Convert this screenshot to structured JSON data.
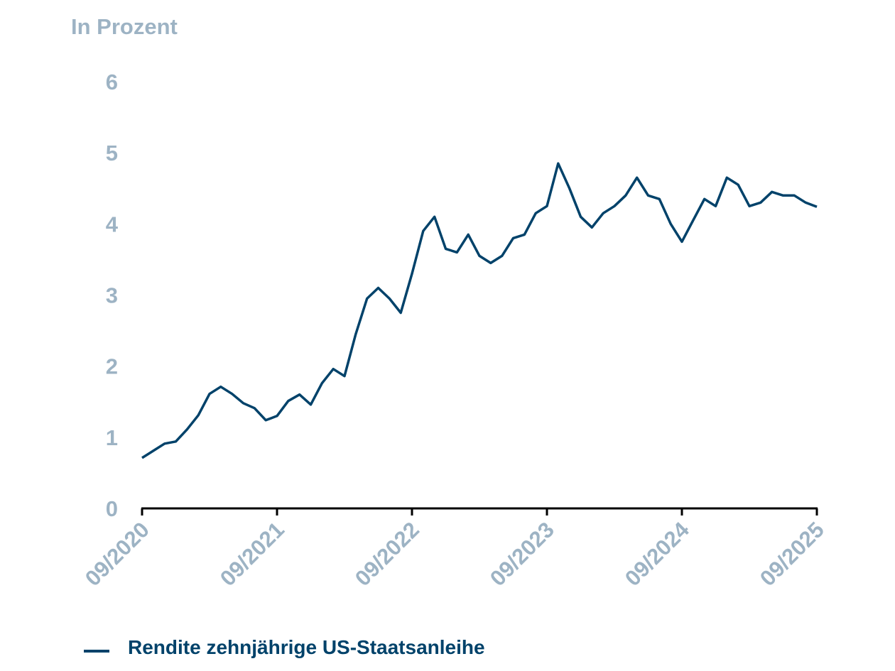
{
  "chart_data": {
    "type": "line",
    "title": "",
    "ylabel": "In Prozent",
    "xlabel": "",
    "ylim": [
      0,
      6
    ],
    "yticks": [
      "0",
      "1",
      "2",
      "3",
      "4",
      "5",
      "6"
    ],
    "xticks": [
      "09/2020",
      "09/2021",
      "09/2022",
      "09/2023",
      "09/2024",
      "09/2025"
    ],
    "grid": false,
    "legend_position": "bottom-left",
    "colors": {
      "line": "#00426a",
      "labels": "#9db3c4"
    },
    "series": [
      {
        "name": "Rendite zehnjährige US-Staatsanleihe",
        "x": [
          "2020-09",
          "2020-10",
          "2020-11",
          "2020-12",
          "2021-01",
          "2021-02",
          "2021-03",
          "2021-04",
          "2021-05",
          "2021-06",
          "2021-07",
          "2021-08",
          "2021-09",
          "2021-10",
          "2021-11",
          "2021-12",
          "2022-01",
          "2022-02",
          "2022-03",
          "2022-04",
          "2022-05",
          "2022-06",
          "2022-07",
          "2022-08",
          "2022-09",
          "2022-10",
          "2022-11",
          "2022-12",
          "2023-01",
          "2023-02",
          "2023-03",
          "2023-04",
          "2023-05",
          "2023-06",
          "2023-07",
          "2023-08",
          "2023-09",
          "2023-10",
          "2023-11",
          "2023-12",
          "2024-01",
          "2024-02",
          "2024-03",
          "2024-04",
          "2024-05",
          "2024-06",
          "2024-07",
          "2024-08",
          "2024-09",
          "2024-10",
          "2024-11",
          "2024-12",
          "2025-01",
          "2025-02",
          "2025-03",
          "2025-04",
          "2025-05",
          "2025-06",
          "2025-07",
          "2025-08",
          "2025-09"
        ],
        "values": [
          0.71,
          0.81,
          0.91,
          0.94,
          1.11,
          1.31,
          1.61,
          1.71,
          1.61,
          1.48,
          1.41,
          1.24,
          1.3,
          1.51,
          1.6,
          1.46,
          1.76,
          1.96,
          1.86,
          2.45,
          2.95,
          3.1,
          2.95,
          2.75,
          3.3,
          3.9,
          4.1,
          3.65,
          3.6,
          3.85,
          3.55,
          3.45,
          3.55,
          3.8,
          3.85,
          4.15,
          4.25,
          4.85,
          4.5,
          4.1,
          3.95,
          4.15,
          4.25,
          4.4,
          4.65,
          4.4,
          4.35,
          4.0,
          3.75,
          4.05,
          4.35,
          4.25,
          4.65,
          4.55,
          4.25,
          4.3,
          4.45,
          4.4,
          4.4,
          4.3,
          4.24
        ]
      }
    ]
  }
}
